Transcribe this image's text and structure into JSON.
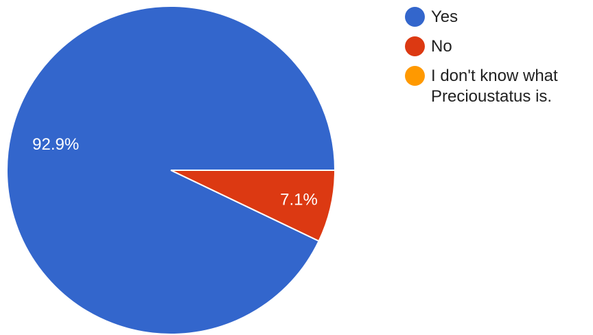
{
  "chart_data": {
    "type": "pie",
    "categories": [
      "Yes",
      "No",
      "I don't know what Precioustatus is."
    ],
    "values": [
      92.9,
      7.1,
      0
    ],
    "colors": [
      "#3366cc",
      "#dc3912",
      "#ff9900"
    ],
    "value_labels": [
      "92.9%",
      "7.1%",
      ""
    ],
    "legend_position": "right"
  }
}
